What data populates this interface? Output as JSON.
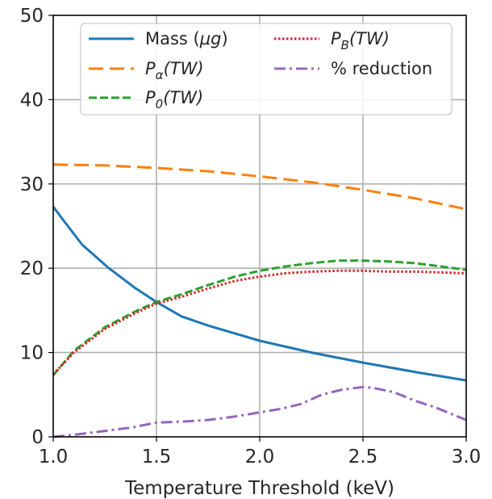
{
  "chart_data": {
    "type": "line",
    "xlabel": "Temperature Threshold (keV)",
    "ylabel": "",
    "xlim": [
      1.0,
      3.0
    ],
    "ylim": [
      0,
      50
    ],
    "xticks": [
      "1.0",
      "1.5",
      "2.0",
      "2.5",
      "3.0"
    ],
    "yticks": [
      "0",
      "10",
      "20",
      "30",
      "40",
      "50"
    ],
    "grid": true,
    "legend_position": "top-right",
    "series": [
      {
        "key": "mass",
        "legend_prefix": "Mass (",
        "legend_math": "μg",
        "legend_suffix": ")",
        "color": "#1f77b4",
        "style": "solid",
        "x": [
          1.0,
          1.04,
          1.14,
          1.27,
          1.4,
          1.5,
          1.62,
          1.75,
          2.0,
          2.25,
          2.5,
          2.75,
          3.0
        ],
        "values": [
          27.3,
          26.0,
          22.8,
          20.0,
          17.6,
          16.0,
          14.3,
          13.2,
          11.4,
          10.0,
          8.8,
          7.7,
          6.7
        ]
      },
      {
        "key": "p_alpha",
        "legend_math": "P",
        "legend_sub": "α",
        "legend_suffix": "(TW)",
        "color": "#ff7f0e",
        "style": "dashed",
        "x": [
          1.0,
          1.25,
          1.5,
          1.75,
          2.0,
          2.25,
          2.5,
          2.75,
          3.0
        ],
        "values": [
          32.3,
          32.2,
          31.9,
          31.5,
          30.9,
          30.2,
          29.3,
          28.3,
          27.0
        ]
      },
      {
        "key": "p_0",
        "legend_math": "P",
        "legend_sub": "0",
        "legend_suffix": "(TW)",
        "color": "#2ca02c",
        "style": "dashed-short",
        "x": [
          1.0,
          1.1,
          1.25,
          1.4,
          1.5,
          1.62,
          1.75,
          1.88,
          2.0,
          2.12,
          2.25,
          2.38,
          2.5,
          2.62,
          2.75,
          2.88,
          3.0
        ],
        "values": [
          7.3,
          10.2,
          13.0,
          14.9,
          16.0,
          16.9,
          18.0,
          19.0,
          19.7,
          20.2,
          20.6,
          20.9,
          20.9,
          20.8,
          20.6,
          20.2,
          19.8
        ]
      },
      {
        "key": "p_b",
        "legend_math": "P",
        "legend_sub": "B",
        "legend_suffix": "(TW)",
        "color": "#d62728",
        "style": "dotted",
        "x": [
          1.0,
          1.1,
          1.25,
          1.4,
          1.5,
          1.62,
          1.75,
          1.88,
          2.0,
          2.12,
          2.25,
          2.38,
          2.5,
          2.62,
          2.75,
          2.88,
          3.0
        ],
        "values": [
          7.4,
          10.0,
          12.8,
          14.7,
          15.8,
          16.6,
          17.6,
          18.5,
          19.0,
          19.4,
          19.6,
          19.7,
          19.7,
          19.6,
          19.6,
          19.5,
          19.4
        ]
      },
      {
        "key": "reduction",
        "legend_text": "% reduction",
        "color": "#9467bd",
        "style": "dashdot",
        "x": [
          1.0,
          1.12,
          1.25,
          1.38,
          1.5,
          1.62,
          1.75,
          1.88,
          2.0,
          2.1,
          2.2,
          2.3,
          2.4,
          2.5,
          2.55,
          2.65,
          2.75,
          2.85,
          3.0
        ],
        "values": [
          0.0,
          0.3,
          0.7,
          1.1,
          1.7,
          1.8,
          2.0,
          2.4,
          2.9,
          3.3,
          3.9,
          5.0,
          5.6,
          5.9,
          5.8,
          5.3,
          4.3,
          3.5,
          2.0
        ]
      }
    ]
  }
}
